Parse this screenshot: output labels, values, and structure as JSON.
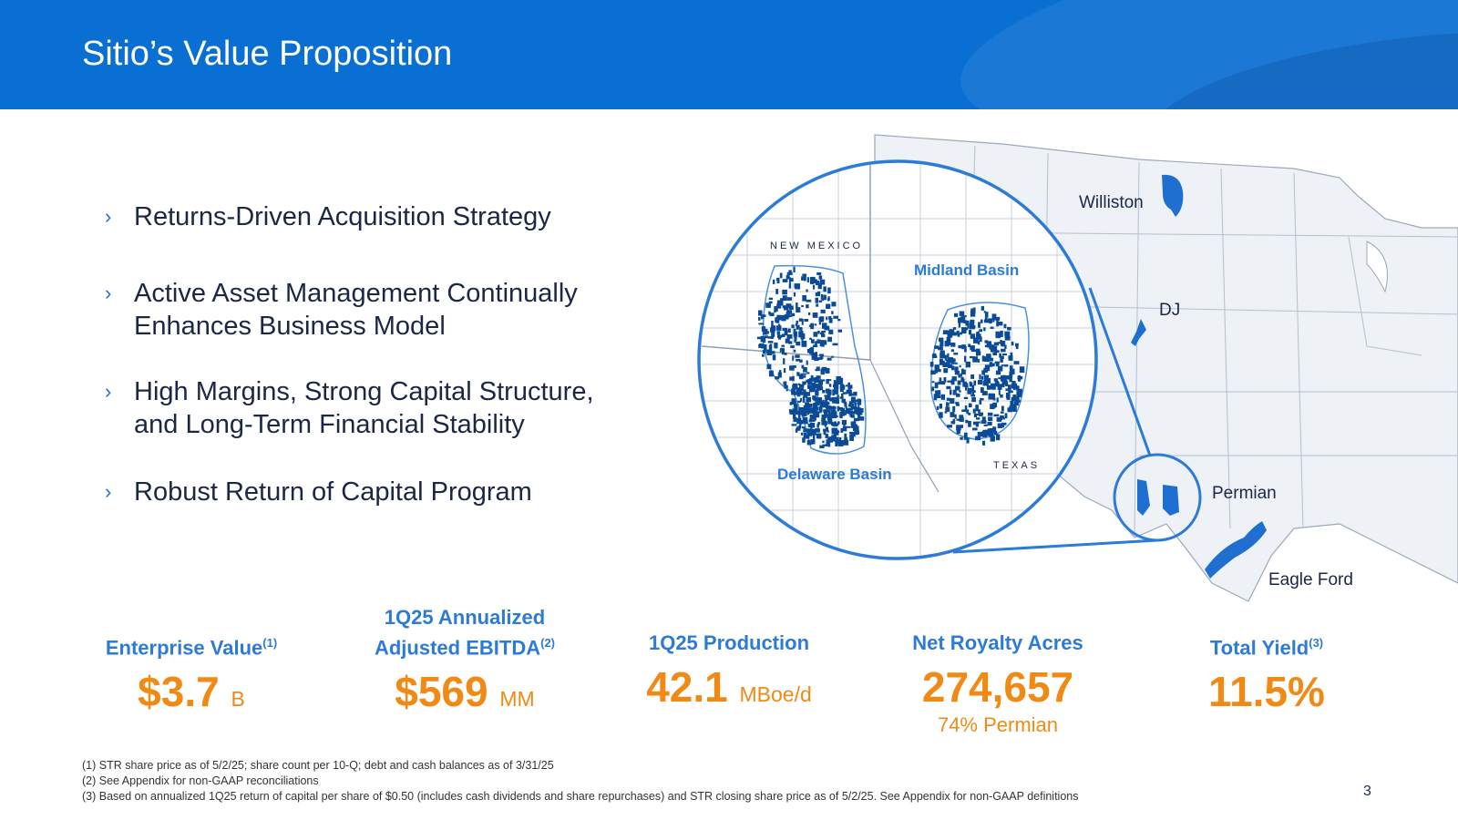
{
  "title": "Sitio’s Value Proposition",
  "bullets": [
    {
      "chevron": "›",
      "text": "Returns-Driven Acquisition Strategy"
    },
    {
      "chevron": "›",
      "text": "Active Asset Management Continually Enhances Business Model"
    },
    {
      "chevron": "›",
      "text": "High Margins, Strong Capital Structure, and Long-Term Financial Stability"
    },
    {
      "chevron": "›",
      "text": "Robust Return of Capital Program"
    }
  ],
  "map": {
    "labels": {
      "williston": "Williston",
      "dj": "DJ",
      "permian": "Permian",
      "eagle_ford": "Eagle Ford",
      "new_mexico": "NEW MEXICO",
      "texas": "TEXAS",
      "midland_basin": "Midland Basin",
      "delaware_basin": "Delaware Basin"
    },
    "colors": {
      "land": "#eef2f7",
      "border": "#9aa9bb",
      "basin": "#1f6fd0",
      "acreage": "#0b4a95"
    }
  },
  "stats": [
    {
      "label": "Enterprise Value",
      "note": "(1)",
      "value": "$3.7",
      "unit": "B"
    },
    {
      "label_line1": "1Q25 Annualized",
      "label": "Adjusted EBITDA",
      "note": "(2)",
      "value": "$569",
      "unit": "MM"
    },
    {
      "label": "1Q25 Production",
      "value": "42.1",
      "unit": "MBoe/d"
    },
    {
      "label": "Net Royalty Acres",
      "value": "274,657",
      "sub": "74% Permian"
    },
    {
      "label": "Total Yield",
      "note": "(3)",
      "value": "11.5%"
    }
  ],
  "footnotes": [
    "(1) STR share price as of 5/2/25; share count per 10-Q; debt and cash balances as of 3/31/25",
    "(2) See Appendix for non-GAAP reconciliations",
    "(3) Based on annualized 1Q25 return of capital per share of $0.50 (includes cash dividends and share repurchases) and STR closing share price as of 5/2/25. See Appendix for non-GAAP definitions"
  ],
  "page_number": "3",
  "colors": {
    "header": "#0a6fd2",
    "accent": "#2d7bd8",
    "orange": "#f08a14",
    "text": "#1b2745"
  }
}
